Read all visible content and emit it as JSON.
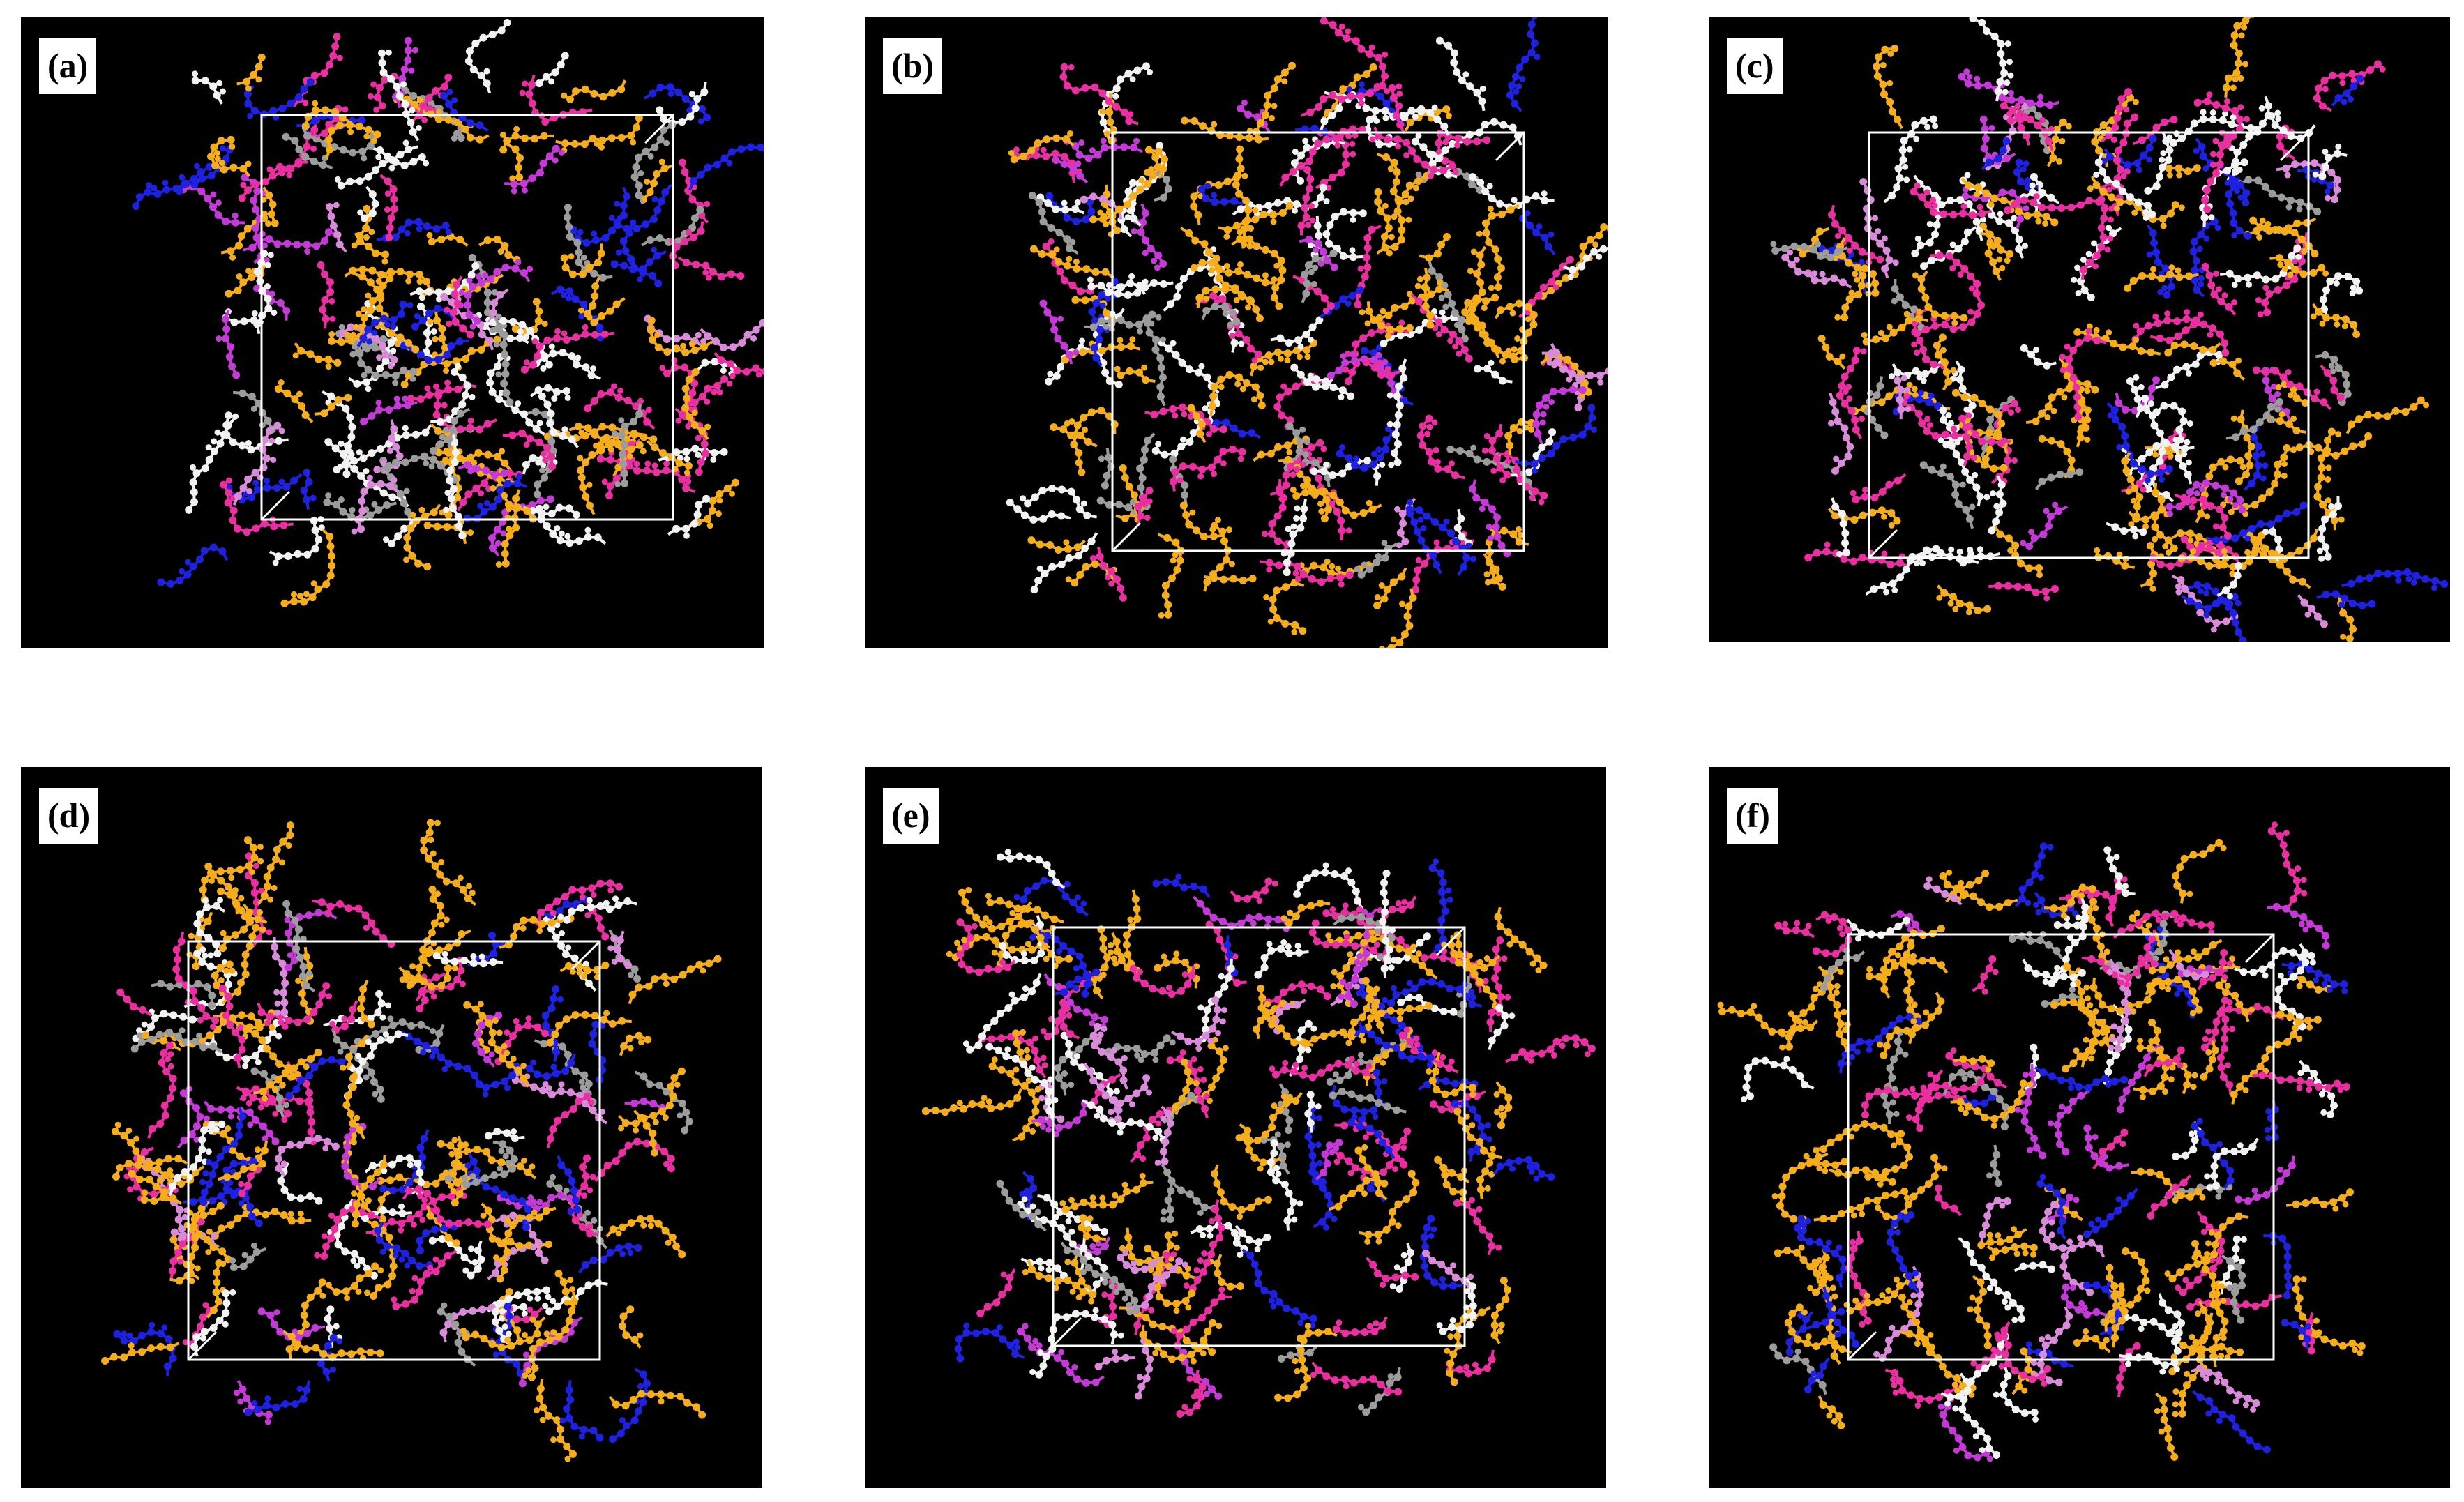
{
  "panels": [
    {
      "id": "a",
      "label": "(a)"
    },
    {
      "id": "b",
      "label": "(b)"
    },
    {
      "id": "c",
      "label": "(c)"
    },
    {
      "id": "d",
      "label": "(d)"
    },
    {
      "id": "e",
      "label": "(e)"
    },
    {
      "id": "f",
      "label": "(f)"
    }
  ],
  "atom_colors": [
    "#f5ad1b",
    "#ea2fa0",
    "#1e22e0",
    "#f2f2f2",
    "#9c9c9c",
    "#d98bd9",
    "#c43ad6"
  ],
  "box_color": "#ffffff"
}
